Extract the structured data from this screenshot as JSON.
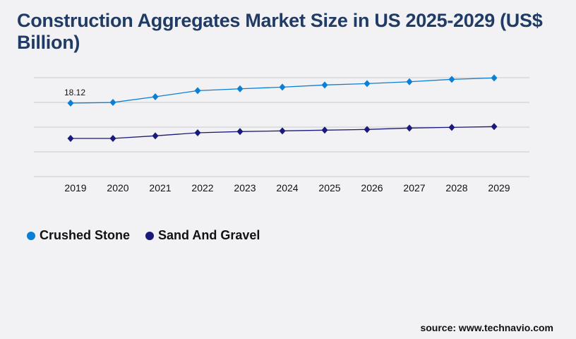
{
  "title": "Construction Aggregates Market Size in US 2025-2029 (US$ Billion)",
  "source": "source: www.technavio.com",
  "chart_data": {
    "type": "line",
    "title": "Construction Aggregates Market Size in US 2025-2029 (US$ Billion)",
    "categories": [
      "2019",
      "2020",
      "2021",
      "2022",
      "2023",
      "2024",
      "2025",
      "2026",
      "2027",
      "2028",
      "2029"
    ],
    "series": [
      {
        "name": "Crushed Stone",
        "color": "#0a7fd6",
        "values": [
          18.12,
          18.29,
          19.69,
          21.2,
          21.66,
          22.07,
          22.6,
          22.94,
          23.4,
          23.99,
          24.34
        ]
      },
      {
        "name": "Sand And Gravel",
        "color": "#1a1a7a",
        "values": [
          9.41,
          9.41,
          10.05,
          10.8,
          11.1,
          11.27,
          11.45,
          11.62,
          11.97,
          12.14,
          12.32
        ]
      }
    ],
    "data_labels": [
      {
        "series": "Crushed Stone",
        "category": "2019",
        "text": "18.12"
      }
    ],
    "ylim": [
      0,
      24.4
    ],
    "grid": true,
    "gridlines": 5,
    "legend": "bottom-left",
    "marker": "diamond"
  }
}
